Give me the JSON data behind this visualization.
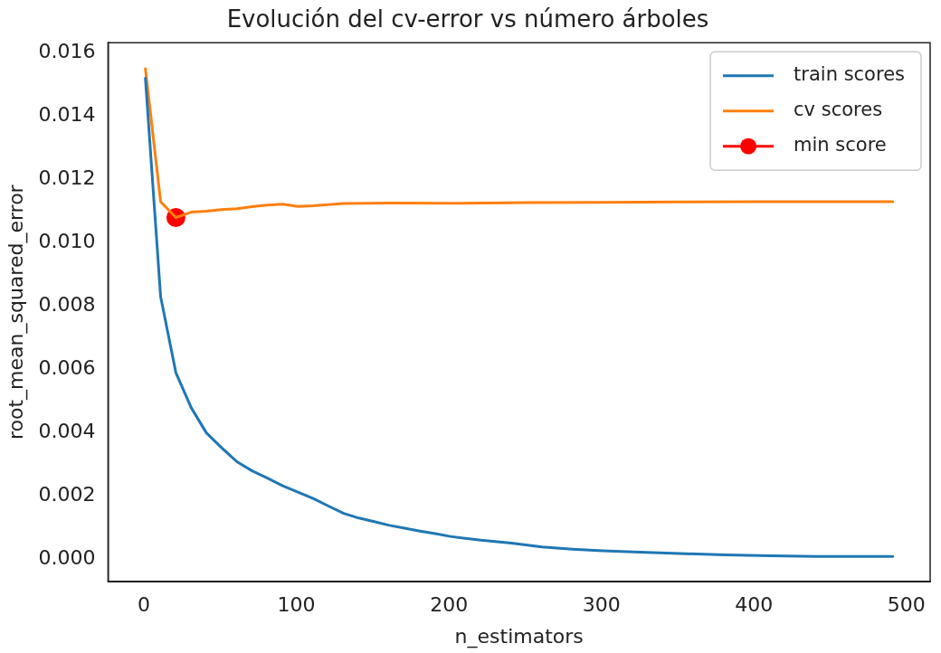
{
  "chart_data": {
    "type": "line",
    "title": "Evolución del cv-error vs número árboles",
    "xlabel": "n_estimators",
    "ylabel": "root_mean_squared_error",
    "series": [
      {
        "name": "train scores",
        "color": "#1f77b4",
        "x": [
          1,
          11,
          21,
          31,
          41,
          51,
          61,
          71,
          81,
          91,
          101,
          111,
          121,
          131,
          141,
          151,
          161,
          171,
          181,
          191,
          201,
          221,
          241,
          261,
          281,
          301,
          321,
          351,
          381,
          411,
          441,
          471,
          491
        ],
        "values": [
          0.0152,
          0.0083,
          0.0059,
          0.0048,
          0.004,
          0.00353,
          0.00309,
          0.0028,
          0.00257,
          0.00233,
          0.00213,
          0.00193,
          0.00169,
          0.00146,
          0.00131,
          0.0012,
          0.00108,
          0.00099,
          0.0009,
          0.00082,
          0.00073,
          0.00061,
          0.00052,
          0.0004,
          0.00033,
          0.00028,
          0.00024,
          0.00019,
          0.00015,
          0.00012,
          0.0001,
          0.0001,
          0.0001
        ]
      },
      {
        "name": "cv scores",
        "color": "#ff7f0e",
        "x": [
          1,
          11,
          21,
          31,
          41,
          51,
          61,
          71,
          81,
          91,
          101,
          111,
          121,
          131,
          161,
          201,
          251,
          301,
          351,
          401,
          451,
          491
        ],
        "values": [
          0.0155,
          0.0113,
          0.0108,
          0.01097,
          0.011,
          0.01105,
          0.01108,
          0.01114,
          0.01119,
          0.01122,
          0.01115,
          0.01117,
          0.01121,
          0.01124,
          0.01126,
          0.01125,
          0.01127,
          0.01128,
          0.01129,
          0.0113,
          0.0113,
          0.0113
        ]
      },
      {
        "name": "min score",
        "color": "#ff0000",
        "marker": "circle",
        "x": [
          21
        ],
        "values": [
          0.0108
        ]
      }
    ],
    "xlim": [
      -23.5,
      515.5
    ],
    "xticks": [
      0,
      100,
      200,
      300,
      400,
      500
    ],
    "ylim": [
      -0.0007,
      0.01632
    ],
    "yticks": [
      {
        "value": 0,
        "label": "0.000"
      },
      {
        "value": 0.002,
        "label": "0.002"
      },
      {
        "value": 0.004,
        "label": "0.004"
      },
      {
        "value": 0.006,
        "label": "0.006"
      },
      {
        "value": 0.008,
        "label": "0.008"
      },
      {
        "value": 0.01,
        "label": "0.010"
      },
      {
        "value": 0.012,
        "label": "0.012"
      },
      {
        "value": 0.014,
        "label": "0.014"
      },
      {
        "value": 0.016,
        "label": "0.016"
      }
    ],
    "legend": "top right",
    "grid": false,
    "marker": "none",
    "line_style": "solid"
  }
}
